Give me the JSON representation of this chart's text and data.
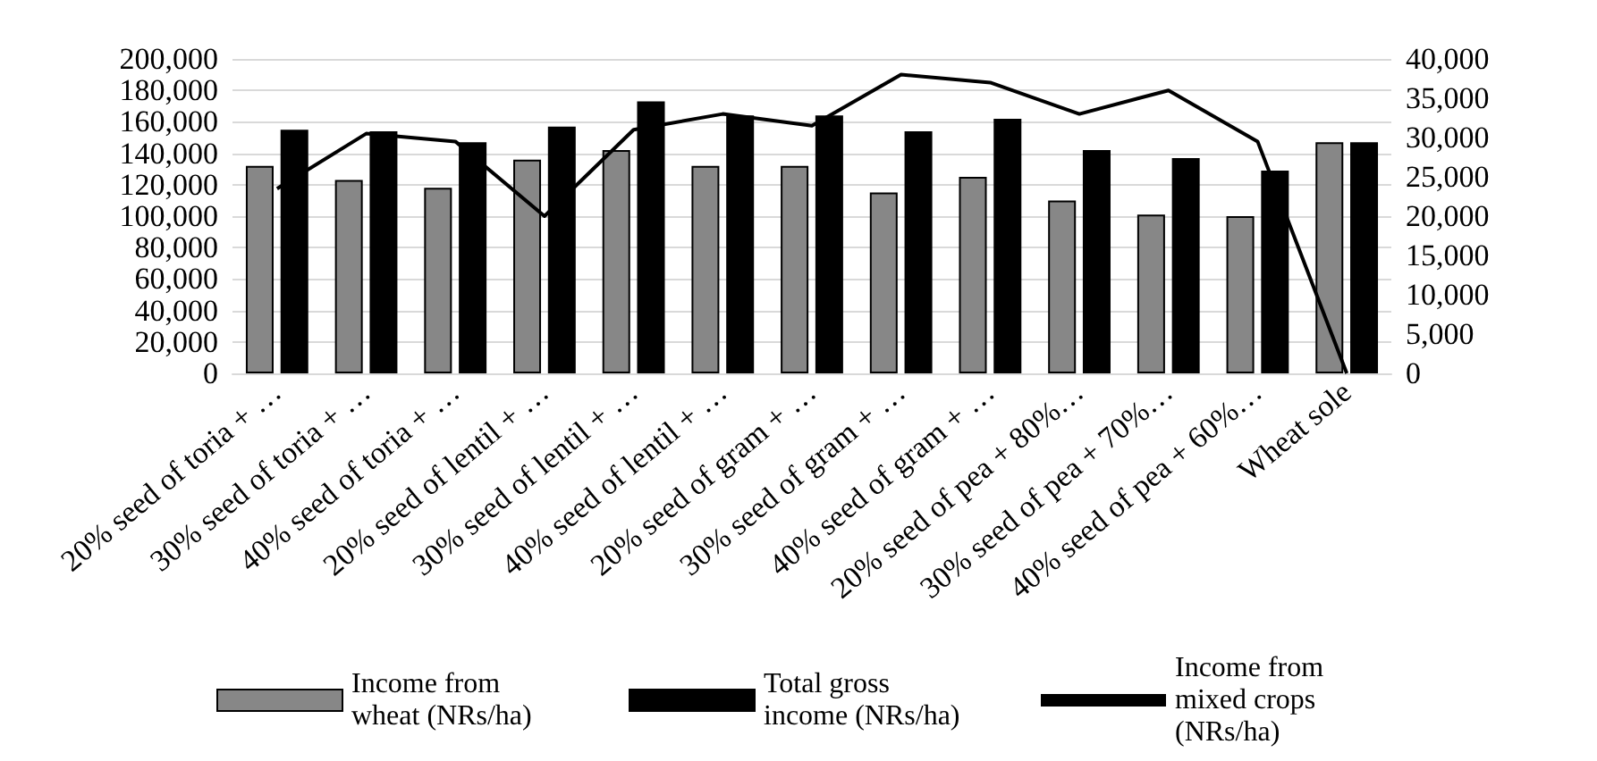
{
  "chart_data": {
    "type": "bar",
    "categories": [
      "20% seed of toria + …",
      "30% seed of toria + …",
      "40% seed of toria + …",
      "20% seed of lentil + …",
      "30% seed of lentil + …",
      "40% seed of lentil + …",
      "20% seed of gram + …",
      "30% seed of gram + …",
      "40% seed of gram + …",
      "20% seed of pea + 80%…",
      "30% seed of pea + 70%…",
      "40% seed of pea + 60%…",
      "Wheat sole"
    ],
    "series": [
      {
        "name": "Income from wheat (NRs/ha)",
        "color": "#878787",
        "values": [
          132000,
          123000,
          118000,
          136000,
          142000,
          132000,
          132000,
          115000,
          125000,
          110000,
          101000,
          100000,
          147000
        ]
      },
      {
        "name": "Total gross income (NRs/ha)",
        "color": "#000000",
        "values": [
          155000,
          154000,
          147000,
          157000,
          173000,
          164000,
          164000,
          154000,
          162000,
          142000,
          137000,
          129000,
          147000
        ]
      },
      {
        "name": "Income from mixed crops (NRs/ha)",
        "type": "line",
        "axis": "y2",
        "color": "#000000",
        "values": [
          23500,
          30500,
          29500,
          20000,
          31000,
          33000,
          31500,
          38000,
          37000,
          33000,
          36000,
          29500,
          0
        ]
      }
    ],
    "ylim": [
      0,
      200000
    ],
    "yticks": [
      0,
      {
        "value": 20000,
        "label": "20,000"
      },
      {
        "value": 40000,
        "label": "40,000"
      },
      {
        "value": 60000,
        "label": "60,000"
      },
      {
        "value": 80000,
        "label": "80,000"
      },
      {
        "value": 100000,
        "label": "100,000"
      },
      {
        "value": 120000,
        "label": "120,000"
      },
      {
        "value": 140000,
        "label": "140,000"
      },
      {
        "value": 160000,
        "label": "160,000"
      },
      {
        "value": 180000,
        "label": "180,000"
      },
      {
        "value": 200000,
        "label": "200,000"
      }
    ],
    "y2lim": [
      0,
      40000
    ],
    "y2ticks": [
      0,
      {
        "value": 5000,
        "label": "5,000"
      },
      {
        "value": 10000,
        "label": "10,000"
      },
      {
        "value": 15000,
        "label": "15,000"
      },
      {
        "value": 20000,
        "label": "20,000"
      },
      {
        "value": 25000,
        "label": "25,000"
      },
      {
        "value": 30000,
        "label": "30,000"
      },
      {
        "value": 35000,
        "label": "35,000"
      },
      {
        "value": 40000,
        "label": "40,000"
      }
    ],
    "grid": "y",
    "legend": "bottom",
    "marker": "none",
    "line_style": "solid"
  }
}
